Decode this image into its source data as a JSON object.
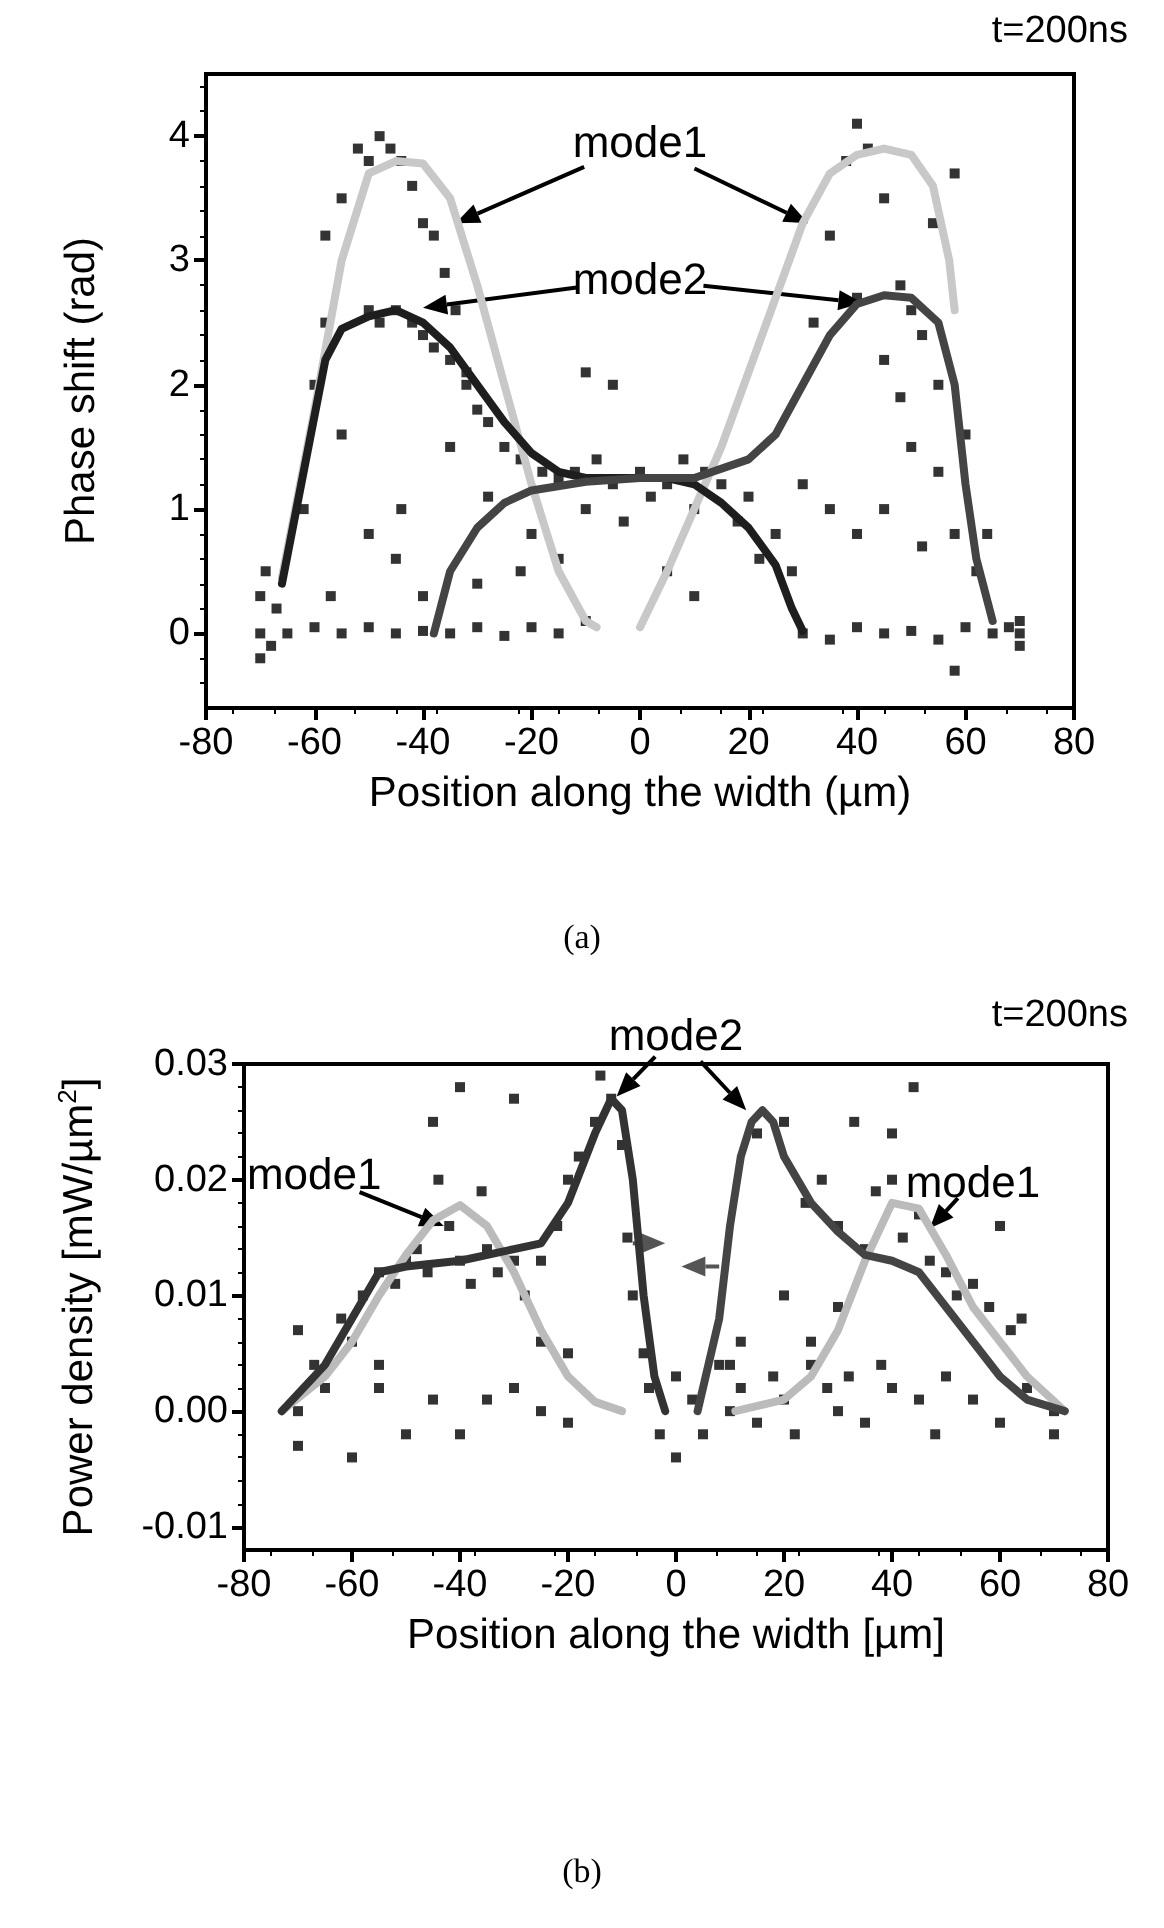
{
  "chart_data": [
    {
      "type": "scatter",
      "title": "(a)",
      "subtitle": "t=200ns",
      "xlabel": "Position along the width (µm)",
      "ylabel": "Phase shift (rad)",
      "xlim": [
        -80,
        80
      ],
      "ylim": [
        -0.6,
        4.5
      ],
      "xticks": [
        -80,
        -60,
        -40,
        -20,
        0,
        20,
        40,
        60,
        80
      ],
      "yticks": [
        0,
        1,
        2,
        3,
        4
      ],
      "annotations": [
        "mode1",
        "mode2"
      ],
      "series": [
        {
          "type": "scatter",
          "marker": "square",
          "color": "#000000",
          "x": [
            -70,
            -70,
            -70,
            -69,
            -68,
            -67,
            -65,
            -60,
            -55,
            -50,
            -45,
            -40,
            -35,
            -30,
            -25,
            -20,
            -15,
            -10,
            30,
            35,
            40,
            45,
            50,
            55,
            58,
            60,
            65,
            68,
            70,
            70,
            70,
            -62,
            -60,
            -58,
            -58,
            -55,
            -52,
            -50,
            -48,
            -46,
            -44,
            -42,
            -40,
            -38,
            -36,
            -34,
            -32,
            -50,
            -48,
            -45,
            -42,
            -40,
            -38,
            -35,
            -32,
            -30,
            -28,
            -25,
            -22,
            -55,
            -57,
            -50,
            -45,
            -44,
            -40,
            -35,
            -30,
            -28,
            -22,
            -18,
            -15,
            -12,
            -10,
            -8,
            -5,
            -3,
            0,
            2,
            5,
            8,
            10,
            12,
            15,
            -5,
            -10,
            -20,
            -15,
            5,
            10,
            18,
            20,
            22,
            25,
            28,
            30,
            32,
            35,
            38,
            40,
            42,
            45,
            48,
            50,
            52,
            54,
            58,
            55,
            50,
            45,
            40,
            35,
            55,
            58,
            60,
            62,
            64,
            45,
            40,
            48,
            52
          ],
          "values": [
            0.0,
            0.3,
            -0.2,
            0.5,
            -0.1,
            0.2,
            0.0,
            0.05,
            0.0,
            0.05,
            0.0,
            0.02,
            0.0,
            0.05,
            -0.02,
            0.05,
            0.0,
            0.1,
            0.0,
            -0.05,
            0.05,
            0.0,
            0.02,
            -0.05,
            -0.3,
            0.05,
            0.0,
            0.05,
            0.0,
            -0.1,
            0.1,
            1.0,
            2.0,
            2.5,
            3.2,
            3.5,
            3.9,
            3.8,
            4.0,
            3.9,
            3.8,
            3.6,
            3.3,
            3.2,
            2.9,
            2.6,
            2.1,
            2.6,
            2.5,
            2.6,
            2.5,
            2.4,
            2.3,
            2.2,
            2.0,
            1.8,
            1.7,
            1.5,
            1.4,
            1.6,
            0.3,
            0.8,
            0.6,
            1.0,
            0.3,
            1.5,
            0.4,
            1.1,
            0.5,
            1.3,
            1.25,
            1.3,
            1.0,
            1.4,
            1.2,
            0.9,
            1.3,
            1.1,
            1.2,
            1.4,
            1.0,
            1.3,
            1.2,
            2.0,
            2.1,
            0.8,
            0.6,
            0.5,
            0.3,
            0.9,
            1.1,
            0.6,
            0.8,
            0.5,
            1.2,
            2.5,
            3.2,
            3.8,
            4.1,
            3.9,
            3.5,
            2.8,
            2.6,
            2.4,
            3.3,
            3.7,
            2.0,
            1.5,
            1.0,
            0.8,
            1.0,
            1.3,
            0.8,
            1.6,
            0.5,
            0.8,
            2.2,
            2.7,
            1.9,
            0.7
          ]
        },
        {
          "type": "line",
          "marker": "none",
          "color": "#c8c8c8",
          "x": [
            -66,
            -60,
            -55,
            -50,
            -45,
            -40,
            -35,
            -30,
            -25,
            -20,
            -15,
            -10,
            -8
          ],
          "values": [
            0.45,
            1.8,
            3.0,
            3.7,
            3.8,
            3.78,
            3.5,
            2.8,
            2.0,
            1.2,
            0.5,
            0.1,
            0.05
          ]
        },
        {
          "type": "line",
          "marker": "none",
          "color": "#c8c8c8",
          "x": [
            0,
            5,
            10,
            15,
            20,
            25,
            30,
            35,
            40,
            45,
            50,
            54,
            57,
            58
          ],
          "values": [
            0.05,
            0.5,
            1.0,
            1.5,
            2.1,
            2.7,
            3.3,
            3.7,
            3.85,
            3.9,
            3.85,
            3.6,
            3.0,
            2.6
          ]
        },
        {
          "type": "line",
          "marker": "none",
          "color": "#1e1e1e",
          "x": [
            -66,
            -62,
            -58,
            -55,
            -50,
            -45,
            -40,
            -35,
            -30,
            -25,
            -20,
            -15,
            -10,
            0,
            5,
            10,
            15,
            20,
            25,
            28,
            30
          ],
          "values": [
            0.4,
            1.3,
            2.2,
            2.45,
            2.55,
            2.6,
            2.5,
            2.3,
            2.0,
            1.7,
            1.45,
            1.3,
            1.25,
            1.25,
            1.25,
            1.2,
            1.05,
            0.85,
            0.55,
            0.2,
            0.02
          ]
        },
        {
          "type": "line",
          "marker": "none",
          "color": "#444444",
          "x": [
            -38,
            -35,
            -30,
            -25,
            -20,
            -10,
            0,
            10,
            20,
            25,
            30,
            35,
            40,
            45,
            50,
            55,
            58,
            60,
            62,
            65
          ],
          "values": [
            0.0,
            0.5,
            0.85,
            1.05,
            1.15,
            1.22,
            1.25,
            1.25,
            1.4,
            1.6,
            2.0,
            2.4,
            2.65,
            2.72,
            2.7,
            2.5,
            2.0,
            1.2,
            0.6,
            0.1
          ]
        }
      ]
    },
    {
      "type": "scatter",
      "title": "(b)",
      "subtitle": "t=200ns",
      "xlabel": "Position along the width [µm]",
      "ylabel": "Power density [mW/µm$^{2}$]",
      "xlim": [
        -80,
        80
      ],
      "ylim": [
        -0.012,
        0.03
      ],
      "xticks": [
        -80,
        -60,
        -40,
        -20,
        0,
        20,
        40,
        60,
        80
      ],
      "yticks": [
        -0.01,
        {
          "value": 0,
          "label": "0.00"
        },
        0.01,
        0.02,
        0.03
      ],
      "annotations": [
        "mode2",
        "mode1",
        "mode1"
      ],
      "series": [
        {
          "type": "scatter",
          "marker": "square",
          "color": "#000000",
          "x": [
            -70,
            -70,
            -70,
            -67,
            -65,
            -62,
            -60,
            -58,
            -55,
            -55,
            -52,
            -50,
            -50,
            -48,
            -46,
            -45,
            -44,
            -42,
            -40,
            -40,
            -38,
            -36,
            -35,
            -33,
            -30,
            -30,
            -28,
            -25,
            -25,
            -22,
            -20,
            -20,
            -18,
            -15,
            -14,
            -12,
            -10,
            -9,
            -8,
            -6,
            -45,
            -40,
            -35,
            -30,
            -25,
            -20,
            -60,
            -55,
            -5,
            -3,
            0,
            0,
            3,
            5,
            8,
            10,
            12,
            15,
            18,
            20,
            22,
            25,
            28,
            30,
            32,
            35,
            38,
            40,
            45,
            48,
            50,
            55,
            60,
            65,
            70,
            70,
            15,
            20,
            24,
            27,
            30,
            35,
            37,
            40,
            40,
            42,
            44,
            45,
            47,
            50,
            52,
            55,
            58,
            60,
            62,
            64,
            33,
            10,
            12,
            20,
            25,
            30
          ],
          "values": [
            0.007,
            0.0,
            -0.003,
            0.004,
            0.002,
            0.008,
            0.006,
            0.01,
            0.012,
            0.002,
            0.011,
            0.013,
            -0.002,
            0.014,
            0.012,
            0.025,
            0.02,
            0.016,
            0.013,
            0.028,
            0.011,
            0.019,
            0.014,
            0.012,
            0.013,
            0.027,
            0.01,
            0.013,
            0.006,
            0.016,
            0.02,
            0.005,
            0.022,
            0.025,
            0.029,
            0.027,
            0.023,
            0.015,
            0.01,
            0.005,
            0.001,
            -0.002,
            0.001,
            0.002,
            0.0,
            -0.001,
            -0.004,
            0.004,
            0.002,
            -0.002,
            0.003,
            -0.004,
            0.001,
            -0.002,
            0.004,
            0.0,
            0.002,
            -0.001,
            0.003,
            0.001,
            -0.002,
            0.004,
            0.002,
            0.0,
            0.003,
            -0.001,
            0.004,
            0.002,
            0.001,
            -0.002,
            0.003,
            0.001,
            -0.001,
            0.002,
            0.0,
            -0.002,
            0.024,
            0.025,
            0.018,
            0.02,
            0.016,
            0.014,
            0.019,
            0.02,
            0.024,
            0.015,
            0.028,
            0.017,
            0.013,
            0.012,
            0.01,
            0.011,
            0.009,
            0.016,
            0.007,
            0.008,
            0.025,
            0.004,
            0.006,
            0.01,
            0.006,
            0.009
          ]
        },
        {
          "type": "line",
          "marker": "none",
          "color": "#bbbbbb",
          "x": [
            -73,
            -65,
            -60,
            -55,
            -50,
            -45,
            -40,
            -35,
            -30,
            -25,
            -20,
            -15,
            -10
          ],
          "values": [
            0,
            0.003,
            0.006,
            0.01,
            0.0135,
            0.0165,
            0.0178,
            0.016,
            0.012,
            0.007,
            0.003,
            0.0008,
            0
          ]
        },
        {
          "type": "line",
          "marker": "none",
          "color": "#bbbbbb",
          "x": [
            11,
            20,
            25,
            30,
            35,
            40,
            45,
            50,
            55,
            60,
            65,
            72
          ],
          "values": [
            0,
            0.001,
            0.003,
            0.007,
            0.013,
            0.018,
            0.0175,
            0.0135,
            0.009,
            0.006,
            0.003,
            0
          ]
        },
        {
          "type": "line",
          "marker": "none",
          "color": "#333333",
          "x": [
            -73,
            -65,
            -60,
            -55,
            -50,
            -40,
            -30,
            -25,
            -20,
            -15,
            -12,
            -10,
            -8,
            -6,
            -4,
            -2
          ],
          "values": [
            0,
            0.004,
            0.008,
            0.012,
            0.0125,
            0.013,
            0.014,
            0.0145,
            0.018,
            0.024,
            0.027,
            0.026,
            0.02,
            0.01,
            0.003,
            0
          ]
        },
        {
          "type": "line",
          "marker": "none",
          "color": "#444444",
          "x": [
            4,
            8,
            10,
            12,
            14,
            16,
            18,
            20,
            25,
            30,
            35,
            40,
            45,
            50,
            55,
            60,
            65,
            72
          ],
          "values": [
            0,
            0.008,
            0.016,
            0.022,
            0.025,
            0.026,
            0.025,
            0.022,
            0.018,
            0.0155,
            0.0135,
            0.013,
            0.012,
            0.009,
            0.006,
            0.003,
            0.001,
            0
          ]
        }
      ]
    }
  ]
}
